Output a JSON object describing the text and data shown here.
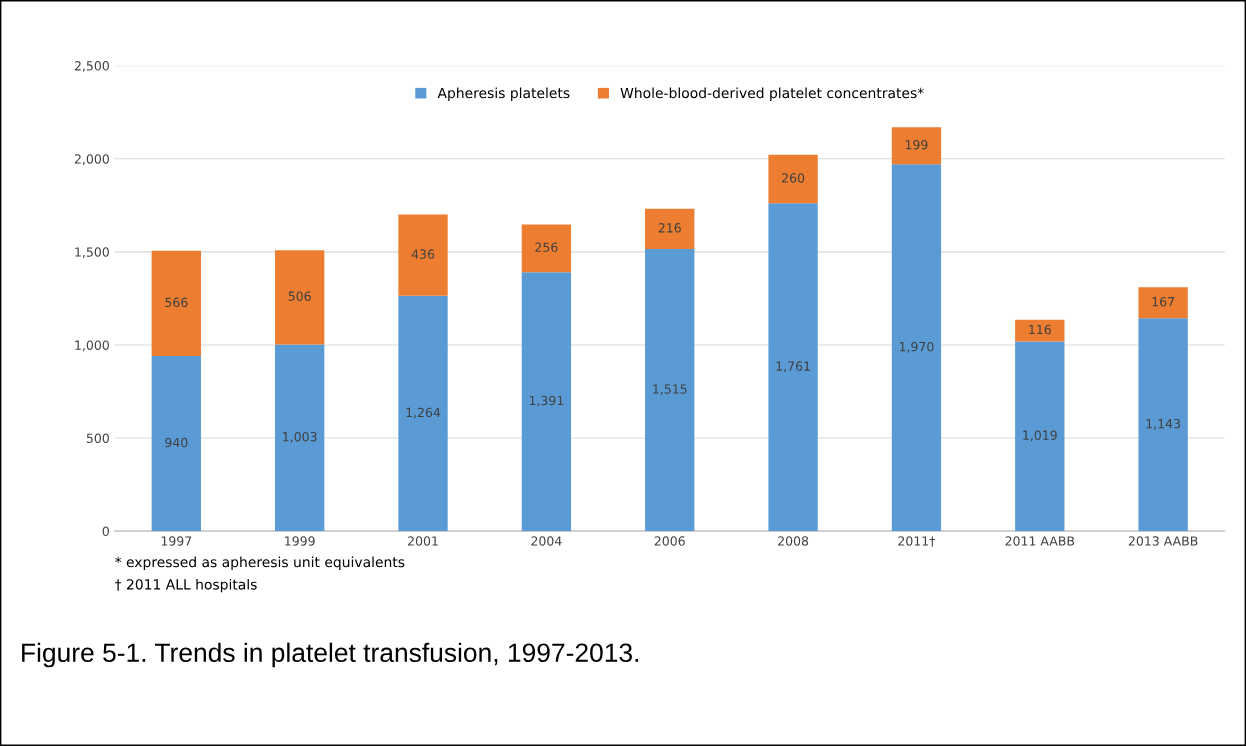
{
  "chart_data": {
    "type": "bar",
    "stacked": true,
    "title": "Figure 5-1. Trends in platelet transfusion, 1997-2013.",
    "categories": [
      "1997",
      "1999",
      "2001",
      "2004",
      "2006",
      "2008",
      "2011†",
      "2011 AABB",
      "2013 AABB"
    ],
    "series": [
      {
        "name": "Apheresis platelets",
        "color": "#5b9bd5",
        "values": [
          940,
          1003,
          1264,
          1391,
          1515,
          1761,
          1970,
          1019,
          1143
        ],
        "value_labels": [
          "940",
          "1,003",
          "1,264",
          "1,391",
          "1,515",
          "1,761",
          "1,970",
          "1,019",
          "1,143"
        ]
      },
      {
        "name": "Whole-blood-derived platelet concentrates*",
        "color": "#ed7d31",
        "values": [
          566,
          506,
          436,
          256,
          216,
          260,
          199,
          116,
          167
        ],
        "value_labels": [
          "566",
          "506",
          "436",
          "256",
          "216",
          "260",
          "199",
          "116",
          "167"
        ]
      }
    ],
    "ylim": [
      0,
      2500
    ],
    "yticks": [
      0,
      {
        "value": 500,
        "label": "500"
      },
      {
        "value": 1000,
        "label": "1,000"
      },
      {
        "value": 1500,
        "label": "1,500"
      },
      {
        "value": 2000,
        "label": "2,000"
      },
      {
        "value": 2500,
        "label": "2,500"
      }
    ],
    "grid": "y",
    "legend": "top",
    "annotations": [
      "* expressed as apheresis unit equivalents",
      "† 2011 ALL hospitals"
    ]
  }
}
